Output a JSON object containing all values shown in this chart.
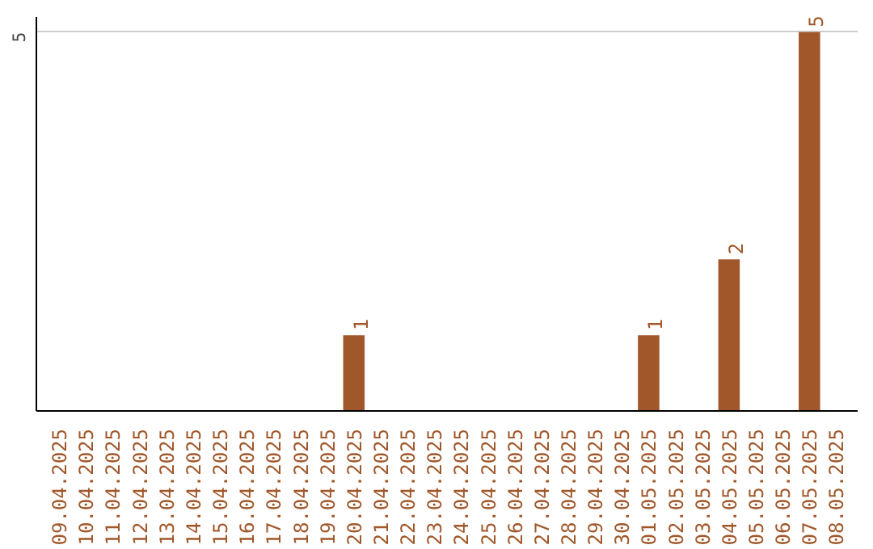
{
  "chart_data": {
    "type": "bar",
    "categories": [
      "09.04.2025",
      "10.04.2025",
      "11.04.2025",
      "12.04.2025",
      "13.04.2025",
      "14.04.2025",
      "15.04.2025",
      "16.04.2025",
      "17.04.2025",
      "18.04.2025",
      "19.04.2025",
      "20.04.2025",
      "21.04.2025",
      "22.04.2025",
      "23.04.2025",
      "24.04.2025",
      "25.04.2025",
      "26.04.2025",
      "27.04.2025",
      "28.04.2025",
      "29.04.2025",
      "30.04.2025",
      "01.05.2025",
      "02.05.2025",
      "03.05.2025",
      "04.05.2025",
      "05.05.2025",
      "06.05.2025",
      "07.05.2025",
      "08.05.2025"
    ],
    "values": [
      0,
      0,
      0,
      0,
      0,
      0,
      0,
      0,
      0,
      0,
      0,
      1,
      0,
      0,
      0,
      0,
      0,
      0,
      0,
      0,
      0,
      0,
      1,
      0,
      0,
      2,
      0,
      0,
      5,
      0
    ],
    "value_labels": [
      null,
      null,
      null,
      null,
      null,
      null,
      null,
      null,
      null,
      null,
      null,
      "1",
      null,
      null,
      null,
      null,
      null,
      null,
      null,
      null,
      null,
      null,
      "1",
      null,
      null,
      "2",
      null,
      null,
      "5",
      null
    ],
    "color": "#a0572a",
    "ylim": [
      0,
      5.2
    ],
    "yticks": [
      5
    ],
    "grid": "y"
  }
}
